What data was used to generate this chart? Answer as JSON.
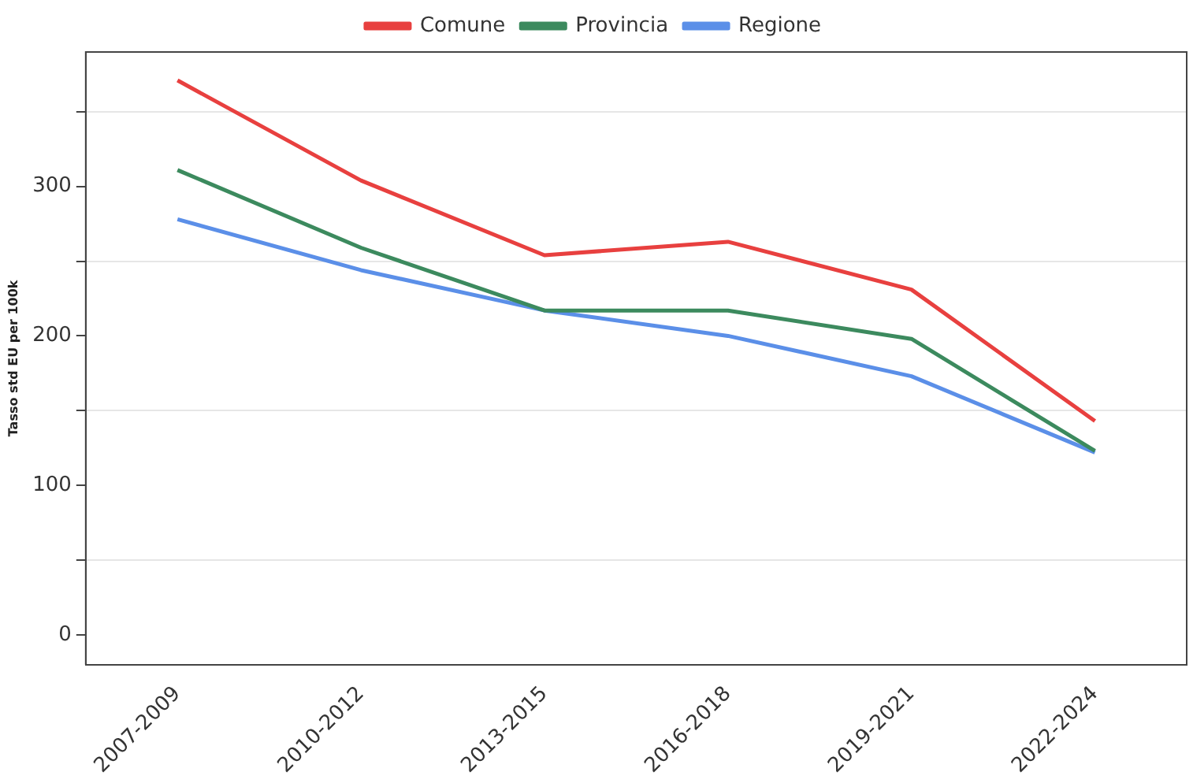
{
  "chart_data": {
    "type": "line",
    "ylabel": "Tasso std EU per 100k",
    "categories": [
      "2007-2009",
      "2010-2012",
      "2013-2015",
      "2016-2018",
      "2019-2021",
      "2022-2024"
    ],
    "series": [
      {
        "name": "Comune",
        "color": "#e8403f",
        "values": [
          371,
          304,
          254,
          263,
          231,
          143
        ]
      },
      {
        "name": "Provincia",
        "color": "#3c8a5e",
        "values": [
          311,
          259,
          217,
          217,
          198,
          123
        ]
      },
      {
        "name": "Regione",
        "color": "#5b8fe8",
        "values": [
          278,
          244,
          217,
          200,
          173,
          122
        ]
      }
    ],
    "ylim": [
      -20,
      390
    ],
    "yticks": [
      0,
      {
        "value": 50,
        "label": null
      },
      100,
      {
        "value": 150,
        "label": null
      },
      200,
      {
        "value": 250,
        "label": null
      },
      300,
      {
        "value": 350,
        "label": null
      }
    ],
    "grid": "y",
    "legend": "top",
    "marker": "none",
    "line_style": "solid"
  }
}
